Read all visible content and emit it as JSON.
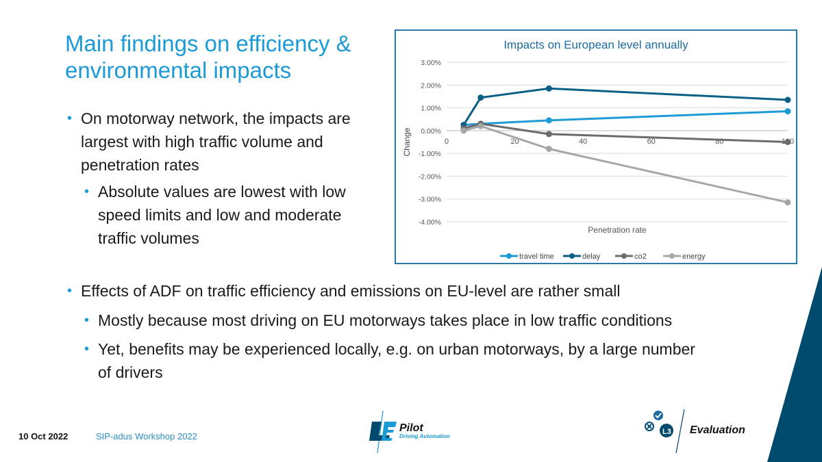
{
  "slide": {
    "title": "Main findings on efficiency & environmental impacts",
    "bullets": [
      {
        "text": "On motorway network, the impacts are largest with high traffic volume and penetration rates",
        "level": 1
      },
      {
        "text": "Absolute values are lowest with low speed limits and low and moderate traffic volumes",
        "level": 2
      },
      {
        "text": "Effects of ADF on traffic efficiency and emissions on EU-level are rather small",
        "level": 1
      },
      {
        "text": "Mostly because most driving on EU motorways takes place in low traffic conditions",
        "level": 2
      },
      {
        "text": "Yet, benefits may be experienced locally, e.g. on urban motorways, by a large number of drivers",
        "level": 2
      }
    ],
    "bullet_glyph": "•",
    "accent_color": "#1b9ad6",
    "dark_accent": "#004a6e"
  },
  "footer": {
    "date": "10 Oct 2022",
    "event": "SIP-adus Workshop 2022",
    "logo_left_text": "Pilot",
    "logo_left_sub": "Driving Automation",
    "logo_right_text": "Evaluation"
  },
  "chart_data": {
    "type": "line",
    "title": "Impacts on European level annually",
    "xlabel": "Penetration rate",
    "ylabel": "Change",
    "xlim": [
      0,
      100
    ],
    "ylim": [
      -4,
      3
    ],
    "x_ticks": [
      "0",
      "20",
      "40",
      "60",
      "80",
      "100"
    ],
    "y_ticks": [
      "3.00%",
      "2.00%",
      "1.00%",
      "0.00%",
      "-1.00%",
      "-2.00%",
      "-3.00%",
      "-4.00%"
    ],
    "legend_position": "bottom",
    "grid": "horizontal",
    "series": [
      {
        "name": "travel time",
        "color": "#1e9ad6",
        "x": [
          5,
          10,
          30,
          100
        ],
        "values": [
          0.25,
          0.3,
          0.45,
          0.85
        ]
      },
      {
        "name": "delay",
        "color": "#0a5f86",
        "x": [
          5,
          10,
          30,
          100
        ],
        "values": [
          0.25,
          1.45,
          1.85,
          1.35
        ]
      },
      {
        "name": "co2",
        "color": "#6b6b6b",
        "x": [
          5,
          10,
          30,
          100
        ],
        "values": [
          0.1,
          0.3,
          -0.15,
          -0.5
        ]
      },
      {
        "name": "energy",
        "color": "#a6a6a6",
        "x": [
          5,
          10,
          30,
          100
        ],
        "values": [
          0.0,
          0.2,
          -0.8,
          -3.15
        ]
      }
    ]
  }
}
